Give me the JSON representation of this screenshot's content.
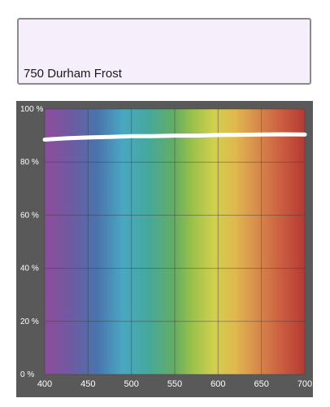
{
  "swatch": {
    "name": "750 Durham Frost",
    "color": "#f6eefb"
  },
  "chart_data": {
    "type": "line",
    "title": "",
    "xlabel": "",
    "ylabel": "",
    "xlim": [
      400,
      700
    ],
    "ylim": [
      0,
      100
    ],
    "x_ticks": [
      400,
      450,
      500,
      550,
      600,
      650,
      700
    ],
    "y_ticks": [
      0,
      20,
      40,
      60,
      80,
      100
    ],
    "x_tick_labels": [
      "400",
      "450",
      "500",
      "550",
      "600",
      "650",
      "700"
    ],
    "y_tick_labels": [
      "0 %",
      "20 %",
      "40 %",
      "60 %",
      "80 %",
      "100 %"
    ],
    "grid": true,
    "background": "visible spectrum gradient",
    "frame_color": "#595959",
    "series": [
      {
        "color": "#ffffff",
        "x": [
          400,
          425,
          450,
          475,
          500,
          525,
          550,
          575,
          600,
          625,
          650,
          675,
          700
        ],
        "y": [
          88.5,
          89.0,
          89.3,
          89.5,
          89.8,
          89.8,
          90.0,
          90.0,
          90.2,
          90.3,
          90.4,
          90.5,
          90.4
        ]
      }
    ]
  }
}
